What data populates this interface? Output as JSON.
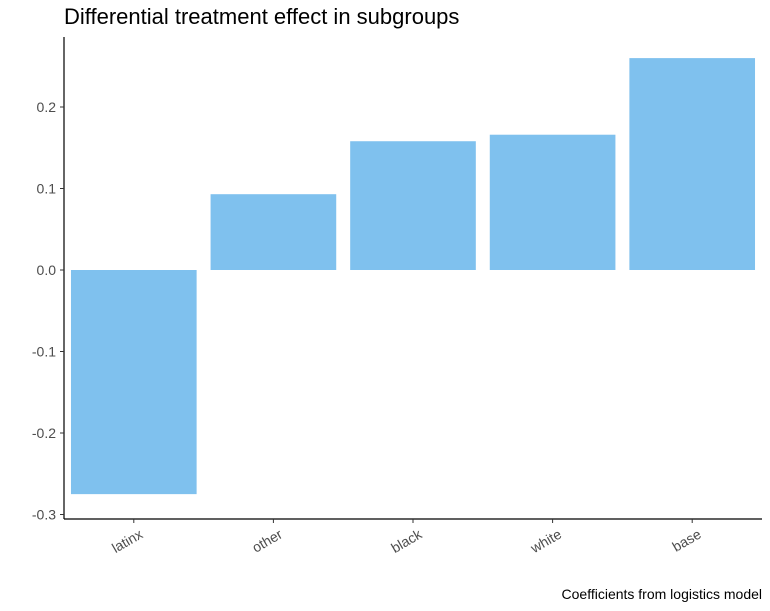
{
  "chart_data": {
    "type": "bar",
    "title": "Differential treatment effect in subgroups",
    "caption": "Coefficients from logistics model",
    "xlabel": "",
    "ylabel": "",
    "categories": [
      "latinx",
      "other",
      "black",
      "white",
      "base"
    ],
    "values": [
      -0.275,
      0.093,
      0.158,
      0.166,
      0.26
    ],
    "ylim": [
      -0.3,
      0.26
    ],
    "yticks": [
      -0.3,
      -0.2,
      -0.1,
      0.0,
      0.1,
      0.2
    ],
    "ytick_labels": [
      "-0.3",
      "-0.2",
      "-0.1",
      "0.0",
      "0.1",
      "0.2"
    ],
    "bar_color": "#7fc1ee",
    "axis_color": "#000000",
    "grid": false,
    "x_tick_rotation": "30 degrees"
  }
}
